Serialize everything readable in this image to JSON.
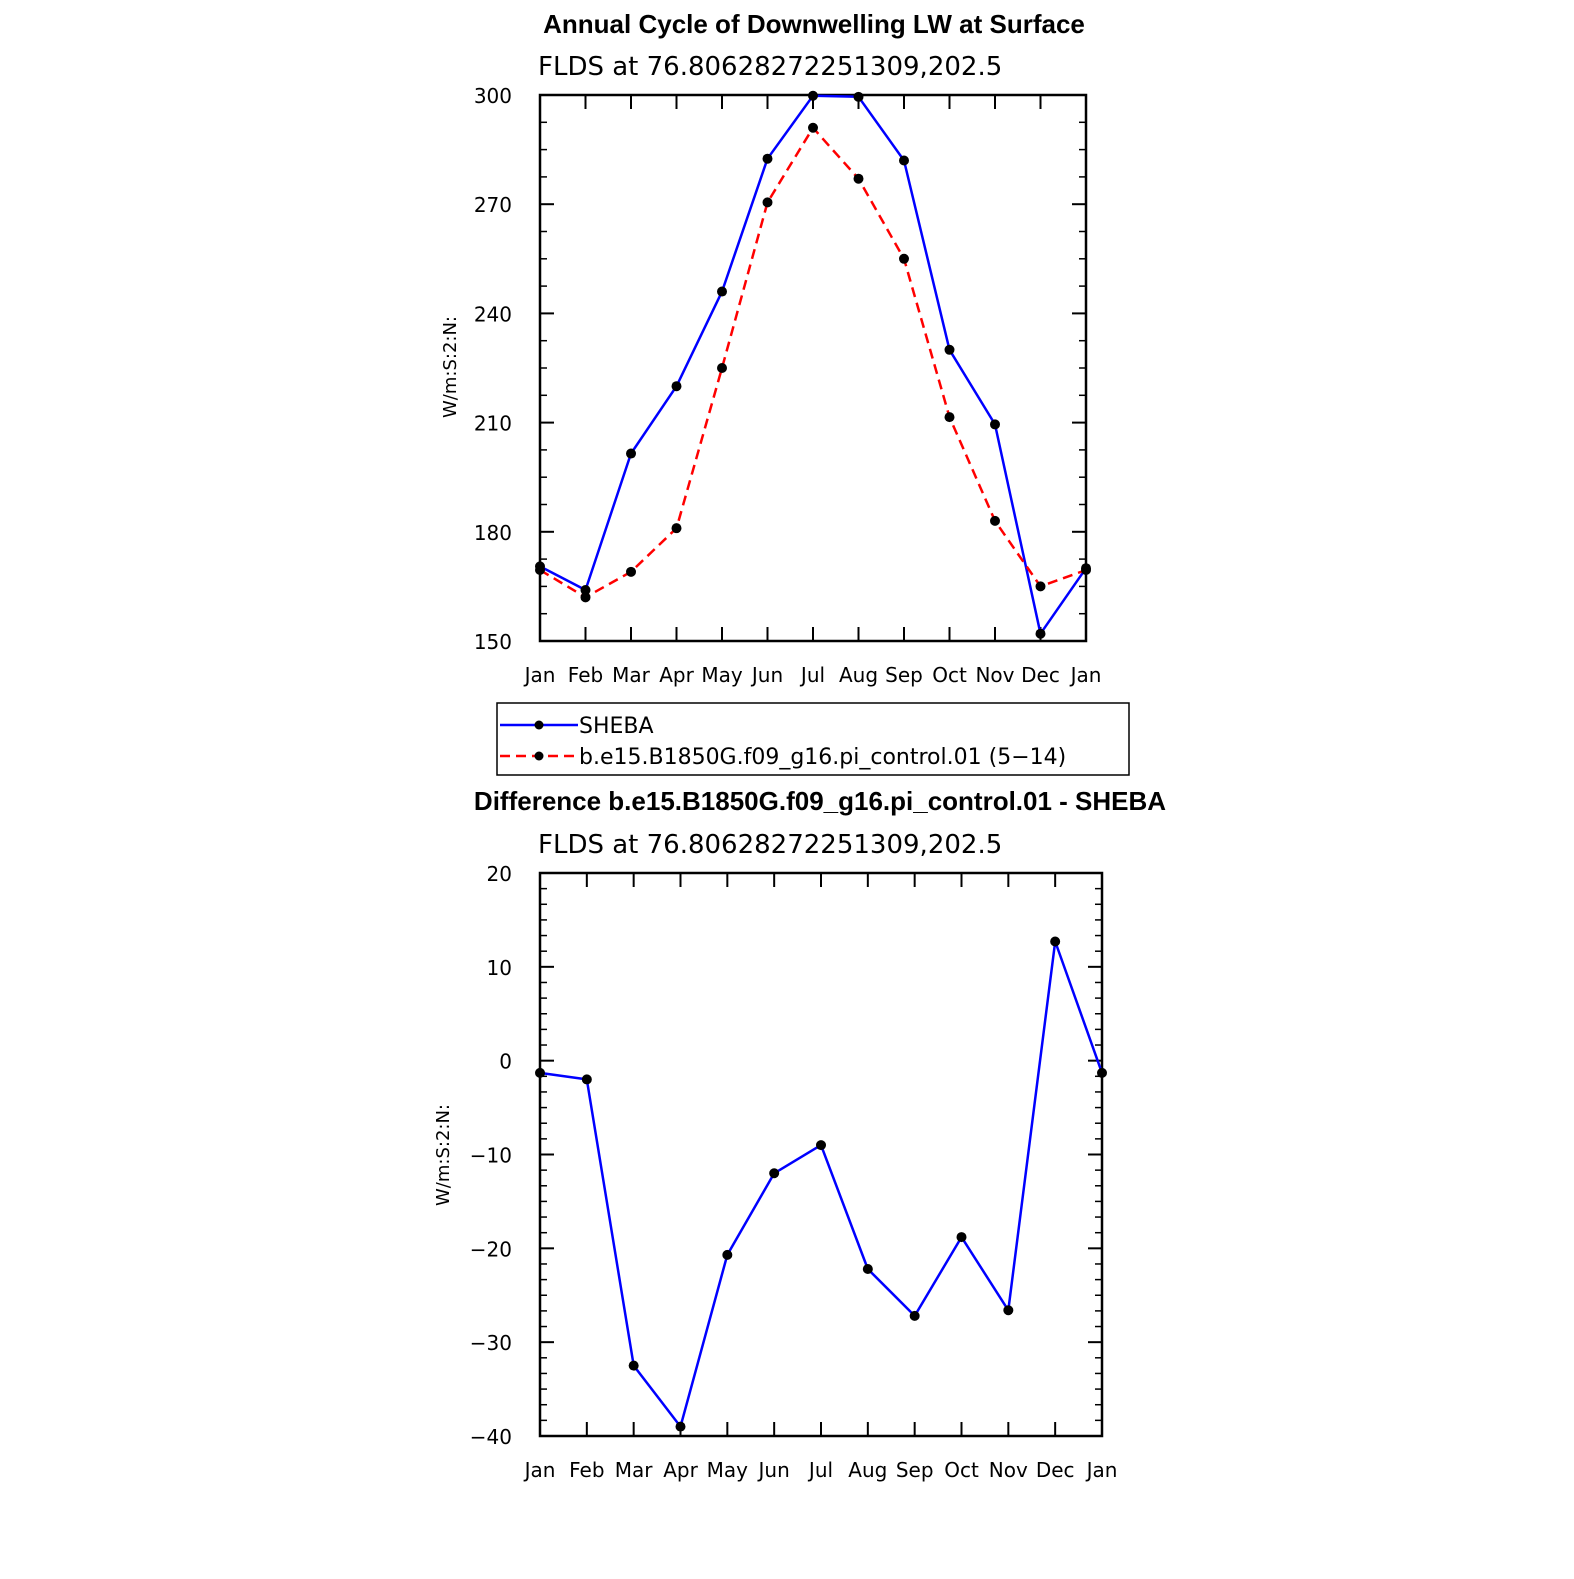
{
  "chart_data": [
    {
      "type": "line",
      "title": "Annual Cycle of Downwelling LW at Surface",
      "subtitle": "FLDS at 76.80628272251309,202.5",
      "xlabel": "",
      "ylabel": "W/m:S:2:N:",
      "categories": [
        "Jan",
        "Feb",
        "Mar",
        "Apr",
        "May",
        "Jun",
        "Jul",
        "Aug",
        "Sep",
        "Oct",
        "Nov",
        "Dec",
        "Jan"
      ],
      "ylim": [
        150,
        300
      ],
      "yticks": [
        150,
        180,
        210,
        240,
        270,
        300
      ],
      "ytick_labels": [
        "150",
        "180",
        "210",
        "240",
        "270",
        "300"
      ],
      "grid": false,
      "legend_position": "bottom",
      "series": [
        {
          "name": "SHEBA",
          "color": "#0000ff",
          "dash": "solid",
          "marker": "filled-circle",
          "values": [
            170.5,
            164,
            201.5,
            220,
            246,
            282.5,
            299.8,
            299.5,
            282,
            230,
            209.5,
            152,
            170
          ]
        },
        {
          "name": "b.e15.B1850G.f09_g16.pi_control.01 (5−14)",
          "color": "#ff0000",
          "dash": "dashed",
          "marker": "filled-circle",
          "values": [
            169.5,
            162,
            169,
            181,
            225,
            270.5,
            291,
            277,
            255,
            211.5,
            183,
            165,
            169.5
          ]
        }
      ]
    },
    {
      "type": "line",
      "title": "Difference b.e15.B1850G.f09_g16.pi_control.01 - SHEBA",
      "subtitle": "FLDS at 76.80628272251309,202.5",
      "xlabel": "",
      "ylabel": "W/m:S:2:N:",
      "categories": [
        "Jan",
        "Feb",
        "Mar",
        "Apr",
        "May",
        "Jun",
        "Jul",
        "Aug",
        "Sep",
        "Oct",
        "Nov",
        "Dec",
        "Jan"
      ],
      "ylim": [
        -40,
        20
      ],
      "yticks": [
        -40,
        -30,
        -20,
        -10,
        0,
        10,
        20
      ],
      "ytick_labels": [
        "−40",
        "−30",
        "−20",
        "−10",
        "0",
        "10",
        "20"
      ],
      "grid": false,
      "series": [
        {
          "color": "#0000ff",
          "dash": "solid",
          "marker": "filled-circle",
          "values": [
            -1.3,
            -2,
            -32.5,
            -39,
            -20.7,
            -12,
            -9,
            -22.2,
            -27.2,
            -18.8,
            -26.6,
            12.7,
            -1.3
          ]
        }
      ]
    }
  ]
}
